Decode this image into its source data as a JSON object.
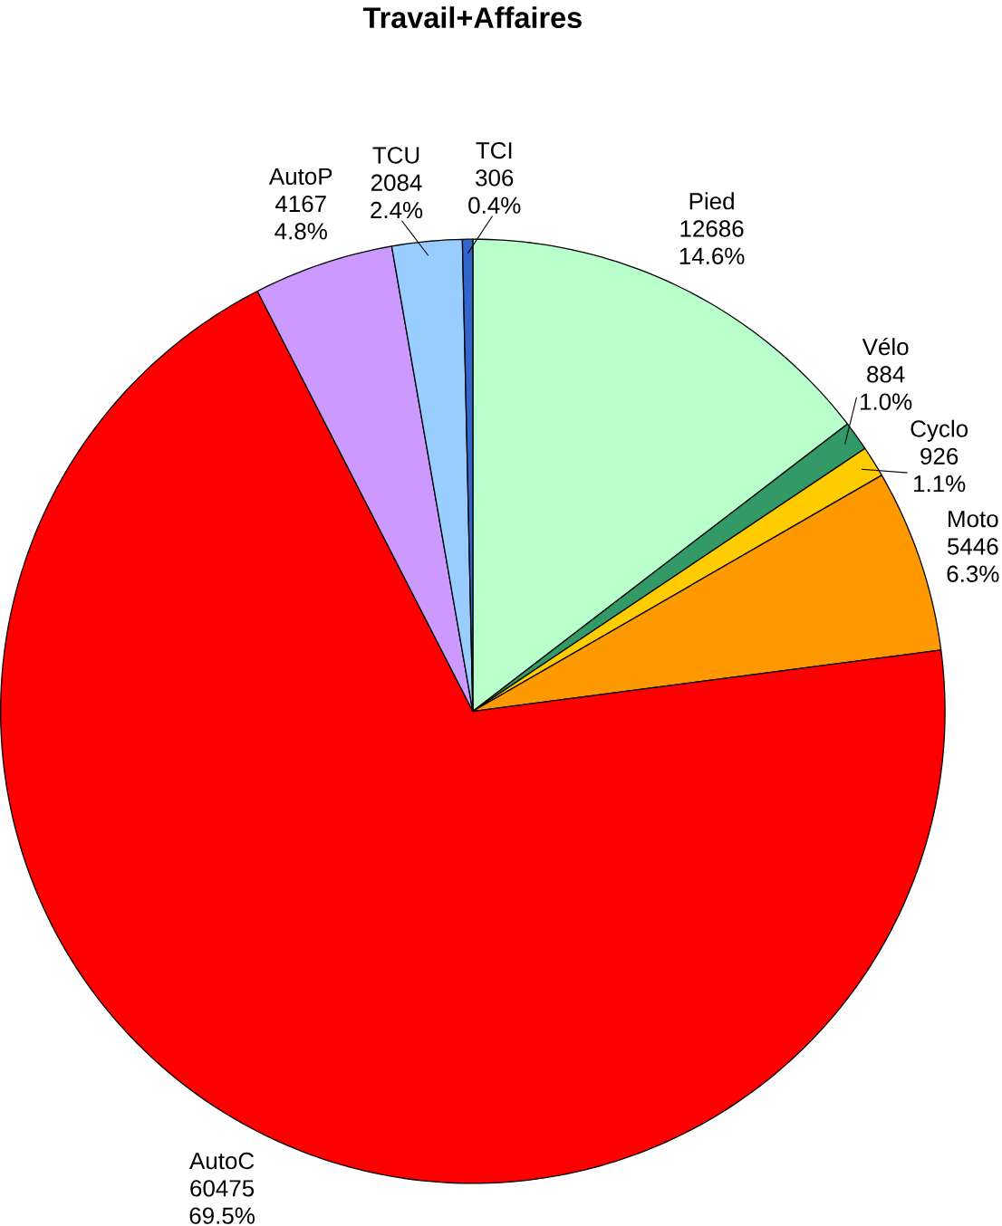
{
  "chart_data": {
    "type": "pie",
    "title": "Travail+Affaires",
    "categories": [
      "Pied",
      "Vélo",
      "Cyclo",
      "Moto",
      "AutoC",
      "AutoP",
      "TCU",
      "TCI"
    ],
    "values": [
      12686,
      884,
      926,
      5446,
      60475,
      4167,
      2084,
      306
    ],
    "colors": [
      "#b8ffcc",
      "#339966",
      "#ffcc00",
      "#ff9900",
      "#ff0000",
      "#cc99ff",
      "#99ccff",
      "#3366cc"
    ],
    "value_labels": [
      "12686",
      "884",
      "926",
      "5446",
      "60475",
      "4167",
      "2084",
      "306"
    ],
    "annotations": [
      "14.6%",
      "1.0%",
      "1.1%",
      "6.3%",
      "69.5%",
      "4.8%",
      "2.4%",
      "0.4%"
    ]
  }
}
